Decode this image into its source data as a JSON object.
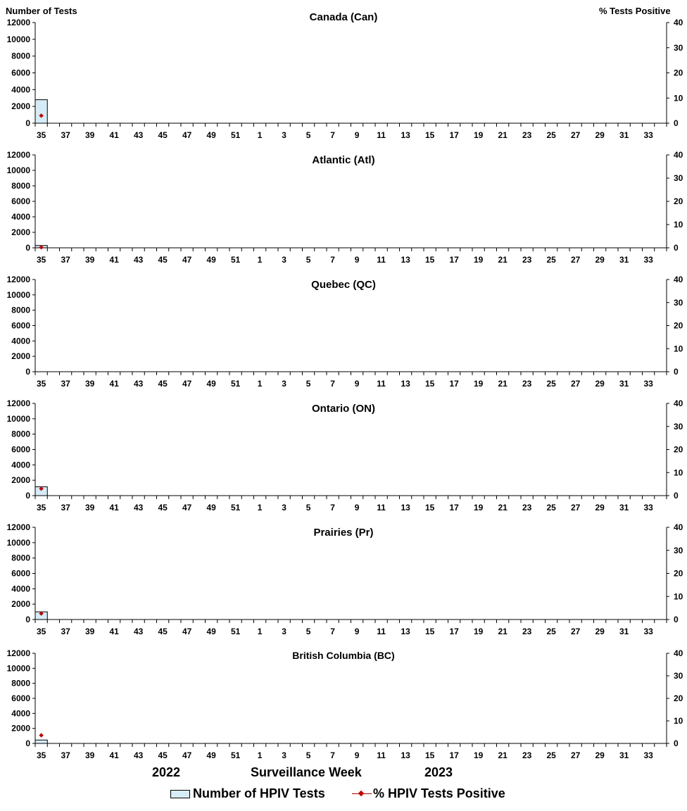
{
  "figure": {
    "left_axis_title": "Number of Tests",
    "right_axis_title": "% Tests Positive",
    "x_axis_title_part1": "Surveillance",
    "x_axis_title_part2": "Week",
    "year_2022": "2022",
    "year_2023": "2023",
    "legend": {
      "bar_label": "Number of HPIV Tests",
      "line_label": "% HPIV Tests Positive"
    },
    "colors": {
      "bar_fill": "#d6ecf7",
      "bar_stroke": "#000000",
      "line_marker": "#c00000"
    }
  },
  "chart_data": [
    {
      "type": "bar",
      "title": "Canada (Can)",
      "weeks": [
        35,
        36,
        37,
        38,
        39,
        40,
        41,
        42,
        43,
        44,
        45,
        46,
        47,
        48,
        49,
        50,
        51,
        52,
        1,
        2,
        3,
        4,
        5,
        6,
        7,
        8,
        9,
        10,
        11,
        12,
        13,
        14,
        15,
        16,
        17,
        18,
        19,
        20,
        21,
        22,
        23,
        24,
        25,
        26,
        27,
        28,
        29,
        30,
        31,
        32,
        33,
        34
      ],
      "tick_labels": [
        "35",
        "37",
        "39",
        "41",
        "43",
        "45",
        "47",
        "49",
        "51",
        "1",
        "3",
        "5",
        "7",
        "9",
        "11",
        "13",
        "15",
        "17",
        "19",
        "21",
        "23",
        "25",
        "27",
        "29",
        "31",
        "33"
      ],
      "left_ylim": [
        0,
        12000
      ],
      "left_yticks": [
        "0",
        "2000",
        "4000",
        "6000",
        "8000",
        "10000",
        "12000"
      ],
      "right_ylim": [
        0,
        40
      ],
      "right_yticks": [
        "0",
        "10",
        "20",
        "30",
        "40"
      ],
      "series": [
        {
          "name": "Number of HPIV Tests",
          "kind": "bar",
          "axis": "left",
          "values": [
            2800
          ]
        },
        {
          "name": "% HPIV Tests Positive",
          "kind": "line",
          "axis": "right",
          "values": [
            3.0
          ]
        }
      ]
    },
    {
      "type": "bar",
      "title": "Atlantic (Atl)",
      "weeks": [
        35,
        36,
        37,
        38,
        39,
        40,
        41,
        42,
        43,
        44,
        45,
        46,
        47,
        48,
        49,
        50,
        51,
        52,
        1,
        2,
        3,
        4,
        5,
        6,
        7,
        8,
        9,
        10,
        11,
        12,
        13,
        14,
        15,
        16,
        17,
        18,
        19,
        20,
        21,
        22,
        23,
        24,
        25,
        26,
        27,
        28,
        29,
        30,
        31,
        32,
        33,
        34
      ],
      "tick_labels": [
        "35",
        "37",
        "39",
        "41",
        "43",
        "45",
        "47",
        "49",
        "51",
        "1",
        "3",
        "5",
        "7",
        "9",
        "11",
        "13",
        "15",
        "17",
        "19",
        "21",
        "23",
        "25",
        "27",
        "29",
        "31",
        "33"
      ],
      "left_ylim": [
        0,
        12000
      ],
      "left_yticks": [
        "0",
        "2000",
        "4000",
        "6000",
        "8000",
        "10000",
        "12000"
      ],
      "right_ylim": [
        0,
        40
      ],
      "right_yticks": [
        "0",
        "10",
        "20",
        "30",
        "40"
      ],
      "series": [
        {
          "name": "Number of HPIV Tests",
          "kind": "bar",
          "axis": "left",
          "values": [
            300
          ]
        },
        {
          "name": "% HPIV Tests Positive",
          "kind": "line",
          "axis": "right",
          "values": [
            0.2
          ]
        }
      ]
    },
    {
      "type": "bar",
      "title": "Quebec (QC)",
      "weeks": [
        35,
        36,
        37,
        38,
        39,
        40,
        41,
        42,
        43,
        44,
        45,
        46,
        47,
        48,
        49,
        50,
        51,
        52,
        1,
        2,
        3,
        4,
        5,
        6,
        7,
        8,
        9,
        10,
        11,
        12,
        13,
        14,
        15,
        16,
        17,
        18,
        19,
        20,
        21,
        22,
        23,
        24,
        25,
        26,
        27,
        28,
        29,
        30,
        31,
        32,
        33,
        34
      ],
      "tick_labels": [
        "35",
        "37",
        "39",
        "41",
        "43",
        "45",
        "47",
        "49",
        "51",
        "1",
        "3",
        "5",
        "7",
        "9",
        "11",
        "13",
        "15",
        "17",
        "19",
        "21",
        "23",
        "25",
        "27",
        "29",
        "31",
        "33"
      ],
      "left_ylim": [
        0,
        12000
      ],
      "left_yticks": [
        "0",
        "2000",
        "4000",
        "6000",
        "8000",
        "10000",
        "12000"
      ],
      "right_ylim": [
        0,
        40
      ],
      "right_yticks": [
        "0",
        "10",
        "20",
        "30",
        "40"
      ],
      "series": [
        {
          "name": "Number of HPIV Tests",
          "kind": "bar",
          "axis": "left",
          "values": []
        },
        {
          "name": "% HPIV Tests Positive",
          "kind": "line",
          "axis": "right",
          "values": []
        }
      ]
    },
    {
      "type": "bar",
      "title": "Ontario (ON)",
      "weeks": [
        35,
        36,
        37,
        38,
        39,
        40,
        41,
        42,
        43,
        44,
        45,
        46,
        47,
        48,
        49,
        50,
        51,
        52,
        1,
        2,
        3,
        4,
        5,
        6,
        7,
        8,
        9,
        10,
        11,
        12,
        13,
        14,
        15,
        16,
        17,
        18,
        19,
        20,
        21,
        22,
        23,
        24,
        25,
        26,
        27,
        28,
        29,
        30,
        31,
        32,
        33,
        34
      ],
      "tick_labels": [
        "35",
        "37",
        "39",
        "41",
        "43",
        "45",
        "47",
        "49",
        "51",
        "1",
        "3",
        "5",
        "7",
        "9",
        "11",
        "13",
        "15",
        "17",
        "19",
        "21",
        "23",
        "25",
        "27",
        "29",
        "31",
        "33"
      ],
      "left_ylim": [
        0,
        12000
      ],
      "left_yticks": [
        "0",
        "2000",
        "4000",
        "6000",
        "8000",
        "10000",
        "12000"
      ],
      "right_ylim": [
        0,
        40
      ],
      "right_yticks": [
        "0",
        "10",
        "20",
        "30",
        "40"
      ],
      "series": [
        {
          "name": "Number of HPIV Tests",
          "kind": "bar",
          "axis": "left",
          "values": [
            1150
          ]
        },
        {
          "name": "% HPIV Tests Positive",
          "kind": "line",
          "axis": "right",
          "values": [
            3.0
          ]
        }
      ]
    },
    {
      "type": "bar",
      "title": "Prairies (Pr)",
      "weeks": [
        35,
        36,
        37,
        38,
        39,
        40,
        41,
        42,
        43,
        44,
        45,
        46,
        47,
        48,
        49,
        50,
        51,
        52,
        1,
        2,
        3,
        4,
        5,
        6,
        7,
        8,
        9,
        10,
        11,
        12,
        13,
        14,
        15,
        16,
        17,
        18,
        19,
        20,
        21,
        22,
        23,
        24,
        25,
        26,
        27,
        28,
        29,
        30,
        31,
        32,
        33,
        34
      ],
      "tick_labels": [
        "35",
        "37",
        "39",
        "41",
        "43",
        "45",
        "47",
        "49",
        "51",
        "1",
        "3",
        "5",
        "7",
        "9",
        "11",
        "13",
        "15",
        "17",
        "19",
        "21",
        "23",
        "25",
        "27",
        "29",
        "31",
        "33"
      ],
      "left_ylim": [
        0,
        12000
      ],
      "left_yticks": [
        "0",
        "2000",
        "4000",
        "6000",
        "8000",
        "10000",
        "12000"
      ],
      "right_ylim": [
        0,
        40
      ],
      "right_yticks": [
        "0",
        "10",
        "20",
        "30",
        "40"
      ],
      "series": [
        {
          "name": "Number of HPIV Tests",
          "kind": "bar",
          "axis": "left",
          "values": [
            1000
          ]
        },
        {
          "name": "% HPIV Tests Positive",
          "kind": "line",
          "axis": "right",
          "values": [
            2.6
          ]
        }
      ]
    },
    {
      "type": "bar",
      "title": "British Columbia (BC)",
      "weeks": [
        35,
        36,
        37,
        38,
        39,
        40,
        41,
        42,
        43,
        44,
        45,
        46,
        47,
        48,
        49,
        50,
        51,
        52,
        1,
        2,
        3,
        4,
        5,
        6,
        7,
        8,
        9,
        10,
        11,
        12,
        13,
        14,
        15,
        16,
        17,
        18,
        19,
        20,
        21,
        22,
        23,
        24,
        25,
        26,
        27,
        28,
        29,
        30,
        31,
        32,
        33,
        34
      ],
      "tick_labels": [
        "35",
        "37",
        "39",
        "41",
        "43",
        "45",
        "47",
        "49",
        "51",
        "1",
        "3",
        "5",
        "7",
        "9",
        "11",
        "13",
        "15",
        "17",
        "19",
        "21",
        "23",
        "25",
        "27",
        "29",
        "31",
        "33"
      ],
      "left_ylim": [
        0,
        12000
      ],
      "left_yticks": [
        "0",
        "2000",
        "4000",
        "6000",
        "8000",
        "10000",
        "12000"
      ],
      "right_ylim": [
        0,
        40
      ],
      "right_yticks": [
        "0",
        "10",
        "20",
        "30",
        "40"
      ],
      "series": [
        {
          "name": "Number of HPIV Tests",
          "kind": "bar",
          "axis": "left",
          "values": [
            450
          ]
        },
        {
          "name": "% HPIV Tests Positive",
          "kind": "line",
          "axis": "right",
          "values": [
            3.6
          ]
        }
      ]
    }
  ]
}
